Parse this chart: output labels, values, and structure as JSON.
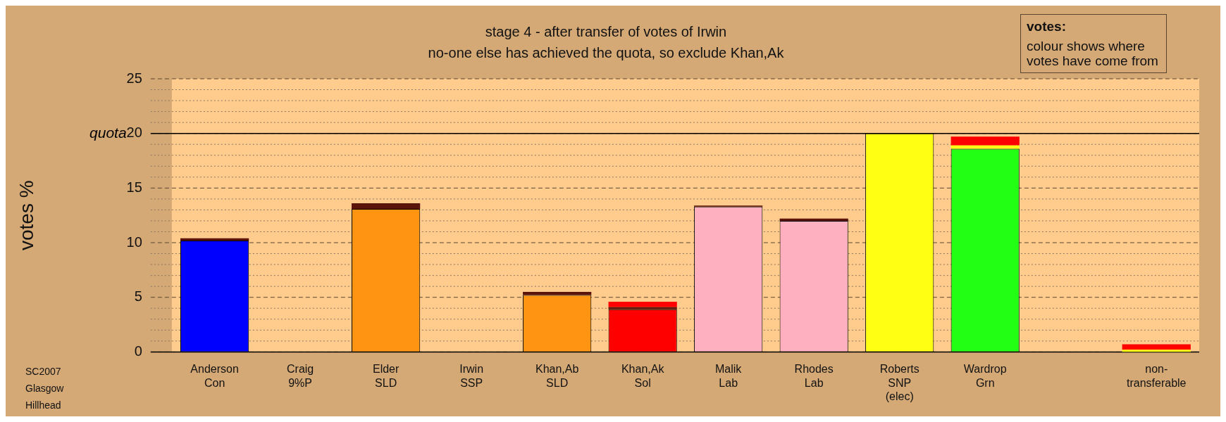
{
  "chart_data": {
    "type": "bar",
    "title": "stage 4 - after transfer of votes of Irwin",
    "subtitle": "no-one else has achieved the quota, so exclude Khan,Ak",
    "ylabel": "votes %",
    "categories": [
      "Anderson\nCon",
      "Craig\n9%P",
      "Elder\nSLD",
      "Irwin\nSSP",
      "Khan,Ab\nSLD",
      "Khan,Ak\nSol",
      "Malik\nLab",
      "Rhodes\nLab",
      "Roberts\nSNP\n(elec)",
      "Wardrop\nGrn",
      null,
      "non-\ntransferable"
    ],
    "stacked": true,
    "series": [
      {
        "colors": [
          "#0000ff",
          "#ff9412",
          "#ff9412",
          "#ff9412",
          "#ff9412",
          "#ff0000",
          "#ffb0c0",
          "#ffb0c0",
          "#ffff14",
          "#22ff14",
          "#ffffff",
          "#ffff14"
        ],
        "values": [
          10.2,
          0,
          13.1,
          0,
          5.2,
          3.9,
          13.3,
          12.0,
          20.0,
          18.6,
          null,
          0
        ]
      },
      {
        "color": "#ffff14",
        "values": [
          0,
          0,
          0,
          0,
          0,
          0,
          0,
          0,
          0,
          0.3,
          null,
          0.2
        ]
      },
      {
        "color": "#5a140a",
        "values": [
          0.2,
          0,
          0.5,
          0,
          0.3,
          0.2,
          0.1,
          0.2,
          0,
          0,
          null,
          0
        ]
      },
      {
        "color": "#ff0000",
        "values": [
          0,
          0,
          0,
          0,
          0,
          0.5,
          0,
          0,
          0,
          0.8,
          null,
          0.5
        ]
      }
    ],
    "ylim": [
      0,
      25
    ],
    "yticks": [
      0,
      {
        "value": 1,
        "label": null
      },
      {
        "value": 2,
        "label": null
      },
      {
        "value": 3,
        "label": null
      },
      {
        "value": 4,
        "label": null
      },
      5,
      {
        "value": 6,
        "label": null
      },
      {
        "value": 7,
        "label": null
      },
      {
        "value": 8,
        "label": null
      },
      {
        "value": 9,
        "label": null
      },
      10,
      {
        "value": 11,
        "label": null
      },
      {
        "value": 12,
        "label": null
      },
      {
        "value": 13,
        "label": null
      },
      {
        "value": 14,
        "label": null
      },
      15,
      {
        "value": 16,
        "label": null
      },
      {
        "value": 17,
        "label": null
      },
      {
        "value": 18,
        "label": null
      },
      {
        "value": 19,
        "label": null
      },
      20,
      {
        "value": 21,
        "label": null
      },
      {
        "value": 22,
        "label": null
      },
      {
        "value": 23,
        "label": null
      },
      {
        "value": 24,
        "label": null
      },
      25
    ],
    "grid": "y",
    "legend": false,
    "ref_lines": [
      {
        "axis": "y",
        "value": 20,
        "label": "quota",
        "color": "#000000",
        "line_style": "solid"
      }
    ],
    "annotations": [
      "votes:",
      "colour shows where votes have come from",
      "SC2007",
      "Glasgow",
      "Hillhead"
    ]
  }
}
